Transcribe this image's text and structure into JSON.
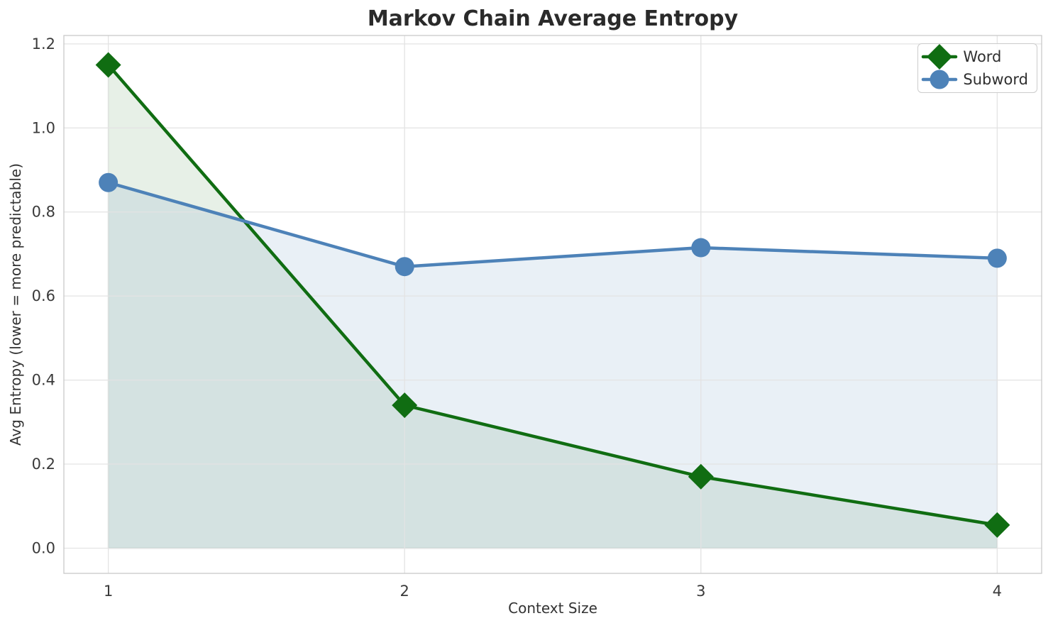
{
  "chart_data": {
    "type": "line",
    "title": "Markov Chain Average Entropy",
    "xlabel": "Context Size",
    "ylabel": "Avg Entropy (lower = more predictable)",
    "x": [
      1,
      2,
      3,
      4
    ],
    "series": [
      {
        "name": "Word",
        "values": [
          1.15,
          0.34,
          0.17,
          0.055
        ],
        "color": "#106d12",
        "marker": "diamond",
        "fill_opacity": 0.1
      },
      {
        "name": "Subword",
        "values": [
          0.87,
          0.67,
          0.715,
          0.69
        ],
        "color": "#4d82b8",
        "marker": "circle",
        "fill_opacity": 0.12
      }
    ],
    "xlim": [
      0.85,
      4.15
    ],
    "ylim": [
      -0.06,
      1.22
    ],
    "xtick_values": [
      1,
      2,
      3,
      4
    ],
    "xtick_labels": [
      "1",
      "2",
      "3",
      "4"
    ],
    "ytick_values": [
      0.0,
      0.2,
      0.4,
      0.6,
      0.8,
      1.0,
      1.2
    ],
    "ytick_labels": [
      "0.0",
      "0.2",
      "0.4",
      "0.6",
      "0.8",
      "1.0",
      "1.2"
    ],
    "grid": true,
    "area_fill_to_zero": true,
    "legend_position": "upper right",
    "line_width": 4.5,
    "colors": {
      "grid": "#e3e3e3",
      "spine": "#c9c9c9",
      "tick_text": "#3a3a3a",
      "label_text": "#333333",
      "title_text": "#2a2a2a",
      "background": "#ffffff"
    }
  }
}
